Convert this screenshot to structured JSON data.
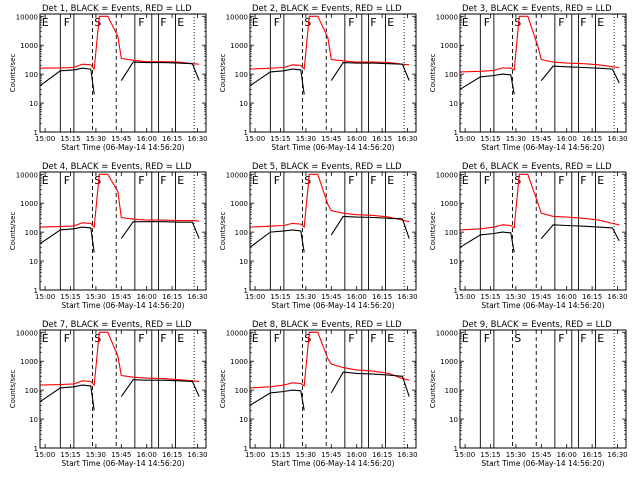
{
  "colors": {
    "events": "#000000",
    "lld": "#ff0000",
    "axes": "#000000",
    "background": "#ffffff"
  },
  "common": {
    "xlabel": "Start Time (06-May-14 14:56:20)",
    "ylabel": "Counts/sec",
    "x_ticks": [
      "15:00",
      "15:15",
      "15:30",
      "15:45",
      "16:00",
      "16:15",
      "16:30"
    ],
    "y_ticks": [
      "1",
      "10",
      "100",
      "1000",
      "10000"
    ]
  },
  "chart_data": [
    {
      "type": "line",
      "title": "Det 1, BLACK = Events, RED = LLD",
      "xlabel": "Start Time (06-May-14 14:56:20)",
      "ylabel": "Counts/sec",
      "x": [
        "14:57",
        "15:09",
        "15:17",
        "15:22",
        "15:27",
        "15:29",
        "15:32",
        "15:37",
        "15:43",
        "15:45",
        "15:52",
        "16:00",
        "16:10",
        "16:19",
        "16:27",
        "16:31"
      ],
      "xlim": [
        "14:57",
        "16:35"
      ],
      "ylim": [
        1,
        12000
      ],
      "yscale": "log",
      "grid": false,
      "series": [
        {
          "name": "LLD",
          "color": "#ff0000",
          "values": [
            160,
            165,
            170,
            220,
            210,
            150,
            10000,
            10000,
            2000,
            350,
            300,
            270,
            270,
            260,
            230,
            220
          ]
        },
        {
          "name": "Events",
          "color": "#000000",
          "values": [
            40,
            130,
            140,
            160,
            150,
            20,
            null,
            null,
            null,
            60,
            260,
            250,
            250,
            240,
            230,
            60
          ]
        }
      ],
      "region_markers": [
        "E",
        "F",
        "S",
        "F",
        "F",
        "E"
      ]
    },
    {
      "type": "line",
      "title": "Det 2, BLACK = Events, RED = LLD",
      "xlabel": "Start Time (06-May-14 14:56:20)",
      "ylabel": "Counts/sec",
      "x": [
        "14:57",
        "15:09",
        "15:17",
        "15:22",
        "15:27",
        "15:29",
        "15:32",
        "15:37",
        "15:43",
        "15:45",
        "15:52",
        "16:00",
        "16:10",
        "16:19",
        "16:27",
        "16:31"
      ],
      "xlim": [
        "14:57",
        "16:35"
      ],
      "ylim": [
        1,
        12000
      ],
      "yscale": "log",
      "grid": false,
      "series": [
        {
          "name": "LLD",
          "color": "#ff0000",
          "values": [
            150,
            160,
            170,
            210,
            200,
            150,
            10000,
            10000,
            1800,
            320,
            290,
            260,
            260,
            250,
            220,
            210
          ]
        },
        {
          "name": "Events",
          "color": "#000000",
          "values": [
            40,
            120,
            130,
            150,
            140,
            20,
            null,
            null,
            null,
            60,
            250,
            240,
            240,
            230,
            220,
            60
          ]
        }
      ],
      "region_markers": [
        "E",
        "F",
        "S",
        "F",
        "F",
        "E"
      ]
    },
    {
      "type": "line",
      "title": "Det 3, BLACK = Events, RED = LLD",
      "xlabel": "Start Time (06-May-14 14:56:20)",
      "ylabel": "Counts/sec",
      "x": [
        "14:57",
        "15:09",
        "15:17",
        "15:22",
        "15:27",
        "15:29",
        "15:32",
        "15:37",
        "15:43",
        "15:45",
        "15:52",
        "16:00",
        "16:10",
        "16:19",
        "16:27",
        "16:31"
      ],
      "xlim": [
        "14:57",
        "16:35"
      ],
      "ylim": [
        1,
        12000
      ],
      "yscale": "log",
      "grid": false,
      "series": [
        {
          "name": "LLD",
          "color": "#ff0000",
          "values": [
            120,
            125,
            135,
            165,
            160,
            140,
            10000,
            10000,
            900,
            320,
            260,
            240,
            230,
            210,
            180,
            170
          ]
        },
        {
          "name": "Events",
          "color": "#000000",
          "values": [
            30,
            80,
            90,
            100,
            95,
            20,
            null,
            null,
            null,
            60,
            190,
            180,
            170,
            160,
            150,
            50
          ]
        }
      ],
      "region_markers": [
        "E",
        "F",
        "S",
        "F",
        "F",
        "E"
      ]
    },
    {
      "type": "line",
      "title": "Det 4, BLACK = Events, RED = LLD",
      "xlabel": "Start Time (06-May-14 14:56:20)",
      "ylabel": "Counts/sec",
      "x": [
        "14:57",
        "15:09",
        "15:17",
        "15:22",
        "15:27",
        "15:29",
        "15:32",
        "15:37",
        "15:43",
        "15:45",
        "15:52",
        "16:00",
        "16:10",
        "16:19",
        "16:27",
        "16:31"
      ],
      "xlim": [
        "14:57",
        "16:35"
      ],
      "ylim": [
        1,
        12000
      ],
      "yscale": "log",
      "grid": false,
      "series": [
        {
          "name": "LLD",
          "color": "#ff0000",
          "values": [
            150,
            155,
            165,
            210,
            200,
            150,
            10000,
            10000,
            2500,
            320,
            280,
            260,
            260,
            250,
            250,
            240
          ]
        },
        {
          "name": "Events",
          "color": "#000000",
          "values": [
            40,
            120,
            130,
            150,
            140,
            20,
            null,
            null,
            null,
            60,
            230,
            230,
            230,
            220,
            220,
            60
          ]
        }
      ],
      "region_markers": [
        "E",
        "F",
        "S",
        "F",
        "F",
        "E"
      ]
    },
    {
      "type": "line",
      "title": "Det 5, BLACK = Events, RED = LLD",
      "xlabel": "Start Time (06-May-14 14:56:20)",
      "ylabel": "Counts/sec",
      "x": [
        "14:57",
        "15:09",
        "15:17",
        "15:22",
        "15:27",
        "15:29",
        "15:32",
        "15:37",
        "15:43",
        "15:45",
        "15:52",
        "16:00",
        "16:10",
        "16:19",
        "16:27",
        "16:31"
      ],
      "xlim": [
        "14:57",
        "16:35"
      ],
      "ylim": [
        1,
        12000
      ],
      "yscale": "log",
      "grid": false,
      "series": [
        {
          "name": "LLD",
          "color": "#ff0000",
          "values": [
            150,
            160,
            170,
            200,
            190,
            150,
            10000,
            10000,
            900,
            550,
            450,
            400,
            380,
            330,
            260,
            230
          ]
        },
        {
          "name": "Events",
          "color": "#000000",
          "values": [
            30,
            100,
            110,
            120,
            110,
            20,
            null,
            null,
            null,
            80,
            350,
            330,
            320,
            300,
            290,
            60
          ]
        }
      ],
      "region_markers": [
        "E",
        "F",
        "S",
        "F",
        "F",
        "E"
      ]
    },
    {
      "type": "line",
      "title": "Det 6, BLACK = Events, RED = LLD",
      "xlabel": "Start Time (06-May-14 14:56:20)",
      "ylabel": "Counts/sec",
      "x": [
        "14:57",
        "15:09",
        "15:17",
        "15:22",
        "15:27",
        "15:29",
        "15:32",
        "15:37",
        "15:43",
        "15:45",
        "15:52",
        "16:00",
        "16:10",
        "16:19",
        "16:27",
        "16:31"
      ],
      "xlim": [
        "14:57",
        "16:35"
      ],
      "ylim": [
        1,
        12000
      ],
      "yscale": "log",
      "grid": false,
      "series": [
        {
          "name": "LLD",
          "color": "#ff0000",
          "values": [
            120,
            130,
            150,
            180,
            170,
            140,
            10000,
            10000,
            1000,
            450,
            350,
            330,
            300,
            260,
            200,
            180
          ]
        },
        {
          "name": "Events",
          "color": "#000000",
          "values": [
            30,
            80,
            90,
            100,
            95,
            20,
            null,
            null,
            null,
            60,
            180,
            170,
            160,
            150,
            140,
            50
          ]
        }
      ],
      "region_markers": [
        "E",
        "F",
        "S",
        "F",
        "F",
        "E"
      ]
    },
    {
      "type": "line",
      "title": "Det 7, BLACK = Events, RED = LLD",
      "xlabel": "Start Time (06-May-14 14:56:20)",
      "ylabel": "Counts/sec",
      "x": [
        "14:57",
        "15:09",
        "15:17",
        "15:22",
        "15:27",
        "15:29",
        "15:32",
        "15:37",
        "15:43",
        "15:45",
        "15:52",
        "16:00",
        "16:10",
        "16:19",
        "16:27",
        "16:31"
      ],
      "xlim": [
        "14:57",
        "16:35"
      ],
      "ylim": [
        1,
        12000
      ],
      "yscale": "log",
      "grid": false,
      "series": [
        {
          "name": "LLD",
          "color": "#ff0000",
          "values": [
            150,
            155,
            165,
            210,
            200,
            150,
            10000,
            10000,
            1500,
            320,
            280,
            260,
            250,
            230,
            210,
            200
          ]
        },
        {
          "name": "Events",
          "color": "#000000",
          "values": [
            40,
            120,
            130,
            150,
            140,
            20,
            null,
            null,
            null,
            60,
            230,
            220,
            220,
            210,
            200,
            60
          ]
        }
      ],
      "region_markers": [
        "E",
        "F",
        "S",
        "F",
        "F",
        "E"
      ]
    },
    {
      "type": "line",
      "title": "Det 8, BLACK = Events, RED = LLD",
      "xlabel": "Start Time (06-May-14 14:56:20)",
      "ylabel": "Counts/sec",
      "x": [
        "14:57",
        "15:09",
        "15:17",
        "15:22",
        "15:27",
        "15:29",
        "15:32",
        "15:37",
        "15:43",
        "15:45",
        "15:52",
        "16:00",
        "16:10",
        "16:19",
        "16:27",
        "16:31"
      ],
      "xlim": [
        "14:57",
        "16:35"
      ],
      "ylim": [
        1,
        12000
      ],
      "yscale": "log",
      "grid": false,
      "series": [
        {
          "name": "LLD",
          "color": "#ff0000",
          "values": [
            120,
            130,
            150,
            180,
            170,
            140,
            10000,
            10000,
            1200,
            800,
            600,
            500,
            450,
            380,
            250,
            220
          ]
        },
        {
          "name": "Events",
          "color": "#000000",
          "values": [
            30,
            80,
            90,
            100,
            95,
            20,
            null,
            null,
            null,
            80,
            420,
            380,
            360,
            330,
            300,
            60
          ]
        }
      ],
      "region_markers": [
        "E",
        "F",
        "S",
        "F",
        "F",
        "E"
      ]
    },
    {
      "type": "line",
      "title": "Det 9, BLACK = Events, RED = LLD",
      "xlabel": "Start Time (06-May-14 14:56:20)",
      "ylabel": "Counts/sec",
      "x": [],
      "xlim": [
        "14:57",
        "16:35"
      ],
      "ylim": [
        1,
        12000
      ],
      "yscale": "log",
      "grid": false,
      "series": [],
      "region_markers": [
        "E",
        "F",
        "S",
        "F",
        "F",
        "E"
      ]
    }
  ]
}
